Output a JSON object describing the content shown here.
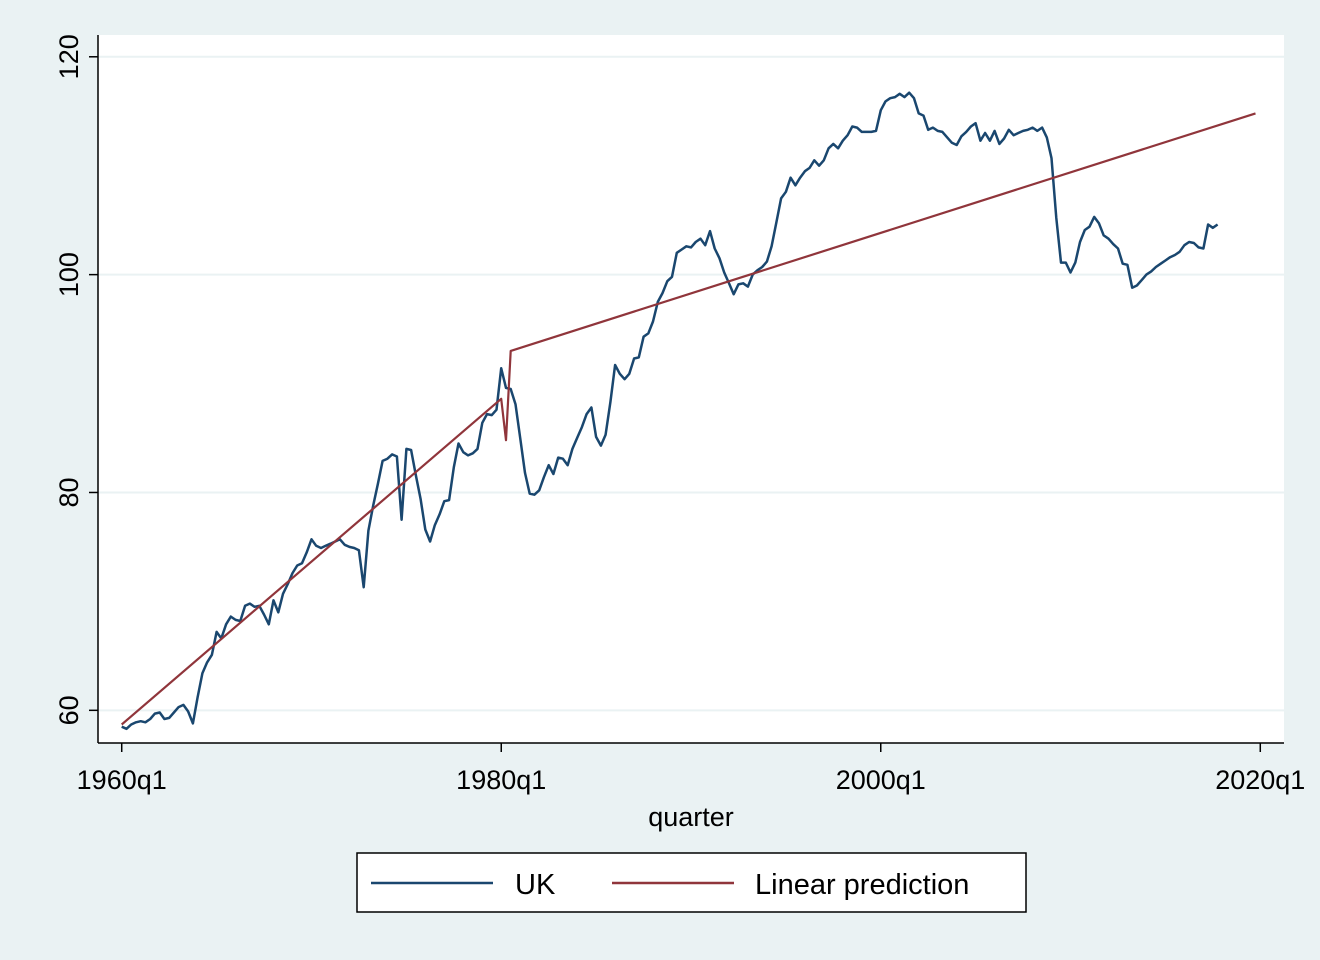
{
  "chart_data": {
    "type": "line",
    "title": "",
    "xlabel": "quarter",
    "ylabel": "",
    "x_unit": "quarter",
    "xlim": [
      "1958q4",
      "2021q2"
    ],
    "ylim": [
      57,
      122
    ],
    "x_ticks": [
      {
        "value": "1960q1",
        "label": "1960q1"
      },
      {
        "value": "1980q1",
        "label": "1980q1"
      },
      {
        "value": "2000q1",
        "label": "2000q1"
      },
      {
        "value": "2020q1",
        "label": "2020q1"
      }
    ],
    "y_ticks": [
      {
        "value": 60,
        "label": "60"
      },
      {
        "value": 80,
        "label": "80"
      },
      {
        "value": 100,
        "label": "100"
      },
      {
        "value": 120,
        "label": "120"
      }
    ],
    "grid": "horizontal",
    "legend": {
      "position": "bottom",
      "entries": [
        "UK",
        "Linear prediction"
      ]
    },
    "series": [
      {
        "name": "UK",
        "color": "#1a476f",
        "points": [
          [
            "1960q1",
            58.5
          ],
          [
            "1960q2",
            58.3
          ],
          [
            "1960q3",
            58.7
          ],
          [
            "1960q4",
            58.9
          ],
          [
            "1961q1",
            59.0
          ],
          [
            "1961q2",
            58.9
          ],
          [
            "1961q3",
            59.2
          ],
          [
            "1961q4",
            59.7
          ],
          [
            "1962q1",
            59.8
          ],
          [
            "1962q2",
            59.2
          ],
          [
            "1962q3",
            59.3
          ],
          [
            "1962q4",
            59.8
          ],
          [
            "1963q1",
            60.3
          ],
          [
            "1963q2",
            60.5
          ],
          [
            "1963q3",
            59.9
          ],
          [
            "1963q4",
            58.8
          ],
          [
            "1964q1",
            61.2
          ],
          [
            "1964q2",
            63.4
          ],
          [
            "1964q3",
            64.4
          ],
          [
            "1964q4",
            65.1
          ],
          [
            "1965q1",
            67.2
          ],
          [
            "1965q2",
            66.6
          ],
          [
            "1965q3",
            67.9
          ],
          [
            "1965q4",
            68.6
          ],
          [
            "1966q1",
            68.3
          ],
          [
            "1966q2",
            68.2
          ],
          [
            "1966q3",
            69.6
          ],
          [
            "1966q4",
            69.8
          ],
          [
            "1967q1",
            69.5
          ],
          [
            "1967q2",
            69.6
          ],
          [
            "1967q3",
            68.8
          ],
          [
            "1967q4",
            67.9
          ],
          [
            "1968q1",
            70.1
          ],
          [
            "1968q2",
            69.0
          ],
          [
            "1968q3",
            70.7
          ],
          [
            "1968q4",
            71.6
          ],
          [
            "1969q1",
            72.6
          ],
          [
            "1969q2",
            73.3
          ],
          [
            "1969q3",
            73.5
          ],
          [
            "1969q4",
            74.5
          ],
          [
            "1970q1",
            75.7
          ],
          [
            "1970q2",
            75.1
          ],
          [
            "1970q3",
            74.9
          ],
          [
            "1970q4",
            75.1
          ],
          [
            "1971q1",
            75.3
          ],
          [
            "1971q2",
            75.5
          ],
          [
            "1971q3",
            75.7
          ],
          [
            "1971q4",
            75.2
          ],
          [
            "1972q1",
            75.0
          ],
          [
            "1972q2",
            74.9
          ],
          [
            "1972q3",
            74.7
          ],
          [
            "1972q4",
            71.3
          ],
          [
            "1973q1",
            76.5
          ],
          [
            "1973q2",
            78.8
          ],
          [
            "1973q3",
            80.8
          ],
          [
            "1973q4",
            82.9
          ],
          [
            "1974q1",
            83.1
          ],
          [
            "1974q2",
            83.5
          ],
          [
            "1974q3",
            83.3
          ],
          [
            "1974q4",
            77.5
          ],
          [
            "1975q1",
            84.0
          ],
          [
            "1975q2",
            83.9
          ],
          [
            "1975q3",
            81.6
          ],
          [
            "1975q4",
            79.4
          ],
          [
            "1976q1",
            76.6
          ],
          [
            "1976q2",
            75.5
          ],
          [
            "1976q3",
            77.0
          ],
          [
            "1976q4",
            78.0
          ],
          [
            "1977q1",
            79.2
          ],
          [
            "1977q2",
            79.3
          ],
          [
            "1977q3",
            82.3
          ],
          [
            "1977q4",
            84.5
          ],
          [
            "1978q1",
            83.7
          ],
          [
            "1978q2",
            83.4
          ],
          [
            "1978q3",
            83.6
          ],
          [
            "1978q4",
            84.0
          ],
          [
            "1979q1",
            86.4
          ],
          [
            "1979q2",
            87.2
          ],
          [
            "1979q3",
            87.1
          ],
          [
            "1979q4",
            87.6
          ],
          [
            "1980q1",
            91.4
          ],
          [
            "1980q2",
            89.6
          ],
          [
            "1980q3",
            89.5
          ],
          [
            "1980q4",
            88.1
          ],
          [
            "1981q1",
            85.0
          ],
          [
            "1981q2",
            81.8
          ],
          [
            "1981q3",
            79.9
          ],
          [
            "1981q4",
            79.8
          ],
          [
            "1982q1",
            80.2
          ],
          [
            "1982q2",
            81.4
          ],
          [
            "1982q3",
            82.5
          ],
          [
            "1982q4",
            81.7
          ],
          [
            "1983q1",
            83.2
          ],
          [
            "1983q2",
            83.1
          ],
          [
            "1983q3",
            82.5
          ],
          [
            "1983q4",
            84.0
          ],
          [
            "1984q1",
            85.0
          ],
          [
            "1984q2",
            86.0
          ],
          [
            "1984q3",
            87.2
          ],
          [
            "1984q4",
            87.8
          ],
          [
            "1985q1",
            85.1
          ],
          [
            "1985q2",
            84.3
          ],
          [
            "1985q3",
            85.3
          ],
          [
            "1985q4",
            88.3
          ],
          [
            "1986q1",
            91.7
          ],
          [
            "1986q2",
            90.9
          ],
          [
            "1986q3",
            90.4
          ],
          [
            "1986q4",
            90.9
          ],
          [
            "1987q1",
            92.3
          ],
          [
            "1987q2",
            92.4
          ],
          [
            "1987q3",
            94.3
          ],
          [
            "1987q4",
            94.6
          ],
          [
            "1988q1",
            95.7
          ],
          [
            "1988q2",
            97.5
          ],
          [
            "1988q3",
            98.3
          ],
          [
            "1988q4",
            99.4
          ],
          [
            "1989q1",
            99.8
          ],
          [
            "1989q2",
            102.0
          ],
          [
            "1989q3",
            102.3
          ],
          [
            "1989q4",
            102.6
          ],
          [
            "1990q1",
            102.5
          ],
          [
            "1990q2",
            103.0
          ],
          [
            "1990q3",
            103.3
          ],
          [
            "1990q4",
            102.7
          ],
          [
            "1991q1",
            104.0
          ],
          [
            "1991q2",
            102.4
          ],
          [
            "1991q3",
            101.5
          ],
          [
            "1991q4",
            100.2
          ],
          [
            "1992q1",
            99.2
          ],
          [
            "1992q2",
            98.2
          ],
          [
            "1992q3",
            99.1
          ],
          [
            "1992q4",
            99.2
          ],
          [
            "1993q1",
            98.9
          ],
          [
            "1993q2",
            100.0
          ],
          [
            "1993q3",
            100.4
          ],
          [
            "1993q4",
            100.7
          ],
          [
            "1994q1",
            101.2
          ],
          [
            "1994q2",
            102.6
          ],
          [
            "1994q3",
            104.8
          ],
          [
            "1994q4",
            107.0
          ],
          [
            "1995q1",
            107.6
          ],
          [
            "1995q2",
            108.9
          ],
          [
            "1995q3",
            108.2
          ],
          [
            "1995q4",
            108.9
          ],
          [
            "1996q1",
            109.5
          ],
          [
            "1996q2",
            109.8
          ],
          [
            "1996q3",
            110.5
          ],
          [
            "1996q4",
            110.0
          ],
          [
            "1997q1",
            110.5
          ],
          [
            "1997q2",
            111.6
          ],
          [
            "1997q3",
            112.0
          ],
          [
            "1997q4",
            111.6
          ],
          [
            "1998q1",
            112.3
          ],
          [
            "1998q2",
            112.8
          ],
          [
            "1998q3",
            113.6
          ],
          [
            "1998q4",
            113.5
          ],
          [
            "1999q1",
            113.1
          ],
          [
            "1999q2",
            113.1
          ],
          [
            "1999q3",
            113.1
          ],
          [
            "1999q4",
            113.2
          ],
          [
            "2000q1",
            115.1
          ],
          [
            "2000q2",
            115.9
          ],
          [
            "2000q3",
            116.2
          ],
          [
            "2000q4",
            116.3
          ],
          [
            "2001q1",
            116.6
          ],
          [
            "2001q2",
            116.3
          ],
          [
            "2001q3",
            116.7
          ],
          [
            "2001q4",
            116.2
          ],
          [
            "2002q1",
            114.8
          ],
          [
            "2002q2",
            114.6
          ],
          [
            "2002q3",
            113.3
          ],
          [
            "2002q4",
            113.5
          ],
          [
            "2003q1",
            113.2
          ],
          [
            "2003q2",
            113.1
          ],
          [
            "2003q3",
            112.6
          ],
          [
            "2003q4",
            112.1
          ],
          [
            "2004q1",
            111.9
          ],
          [
            "2004q2",
            112.7
          ],
          [
            "2004q3",
            113.1
          ],
          [
            "2004q4",
            113.6
          ],
          [
            "2005q1",
            113.9
          ],
          [
            "2005q2",
            112.3
          ],
          [
            "2005q3",
            113.0
          ],
          [
            "2005q4",
            112.3
          ],
          [
            "2006q1",
            113.2
          ],
          [
            "2006q2",
            112.0
          ],
          [
            "2006q3",
            112.5
          ],
          [
            "2006q4",
            113.3
          ],
          [
            "2007q1",
            112.8
          ],
          [
            "2007q2",
            113.0
          ],
          [
            "2007q3",
            113.2
          ],
          [
            "2007q4",
            113.3
          ],
          [
            "2008q1",
            113.5
          ],
          [
            "2008q2",
            113.2
          ],
          [
            "2008q3",
            113.5
          ],
          [
            "2008q4",
            112.6
          ],
          [
            "2009q1",
            110.7
          ],
          [
            "2009q2",
            105.2
          ],
          [
            "2009q3",
            101.1
          ],
          [
            "2009q4",
            101.1
          ],
          [
            "2010q1",
            100.2
          ],
          [
            "2010q2",
            101.1
          ],
          [
            "2010q3",
            103.0
          ],
          [
            "2010q4",
            104.1
          ],
          [
            "2011q1",
            104.4
          ],
          [
            "2011q2",
            105.3
          ],
          [
            "2011q3",
            104.7
          ],
          [
            "2011q4",
            103.6
          ],
          [
            "2012q1",
            103.3
          ],
          [
            "2012q2",
            102.8
          ],
          [
            "2012q3",
            102.4
          ],
          [
            "2012q4",
            101.0
          ],
          [
            "2013q1",
            100.9
          ],
          [
            "2013q2",
            98.8
          ],
          [
            "2013q3",
            99.0
          ],
          [
            "2013q4",
            99.5
          ],
          [
            "2014q1",
            100.0
          ],
          [
            "2014q2",
            100.3
          ],
          [
            "2014q3",
            100.7
          ],
          [
            "2014q4",
            101.0
          ],
          [
            "2015q1",
            101.3
          ],
          [
            "2015q2",
            101.6
          ],
          [
            "2015q3",
            101.8
          ],
          [
            "2015q4",
            102.1
          ],
          [
            "2016q1",
            102.7
          ],
          [
            "2016q2",
            103.0
          ],
          [
            "2016q3",
            102.9
          ],
          [
            "2016q4",
            102.5
          ],
          [
            "2017q1",
            102.4
          ],
          [
            "2017q2",
            104.6
          ],
          [
            "2017q3",
            104.3
          ],
          [
            "2017q4",
            104.6
          ]
        ]
      },
      {
        "name": "Linear prediction",
        "color": "#90353b",
        "points": [
          [
            "1960q1",
            58.7
          ],
          [
            "1980q1",
            88.6
          ],
          [
            "1980q2",
            84.8
          ],
          [
            "1980q3",
            93.0
          ],
          [
            "2019q4",
            114.8
          ]
        ]
      }
    ]
  }
}
